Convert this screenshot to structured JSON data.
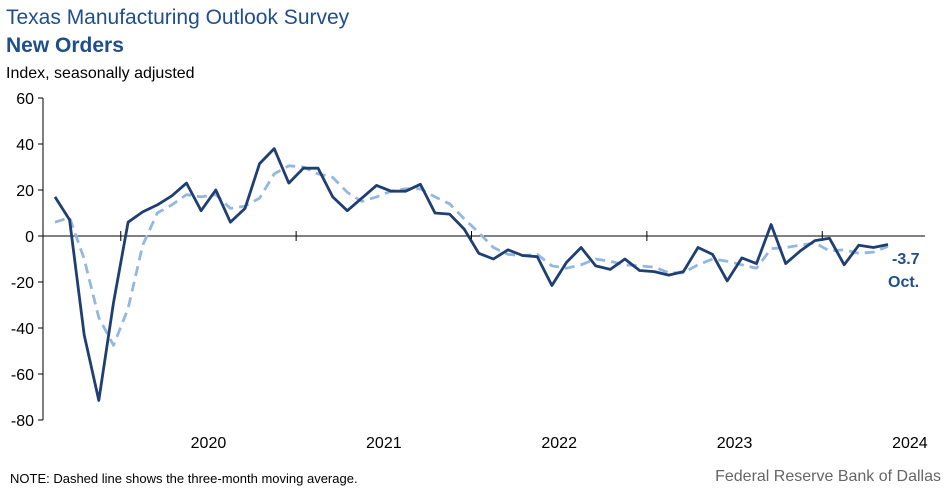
{
  "header": {
    "title": "Texas Manufacturing Outlook Survey",
    "subtitle": "New Orders",
    "units": "Index, seasonally adjusted"
  },
  "footer": {
    "note": "NOTE: Dashed line shows the three-month  moving average.",
    "source": "Federal Reserve Bank of Dallas"
  },
  "colors": {
    "series_main": "#1f3f73",
    "series_ma": "#94b7e0",
    "axis": "#000000",
    "label": "#1f4e8c"
  },
  "chart_data": {
    "type": "line",
    "x_start": "2019-08",
    "x_end": "2024-10",
    "ylim": [
      -80,
      60
    ],
    "yticks": [
      60,
      40,
      20,
      0,
      -20,
      -40,
      -60,
      -80
    ],
    "xtick_labels": [
      "2020",
      "2021",
      "2022",
      "2023",
      "2024"
    ],
    "grid": false,
    "series": [
      {
        "values": [
          17,
          7,
          -43,
          -71.5,
          -29,
          6,
          10.5,
          13.5,
          17.5,
          23,
          11,
          20,
          6,
          12,
          31.5,
          38,
          23,
          29.5,
          29.5,
          17,
          11,
          16.5,
          22,
          19.5,
          19.5,
          22.5,
          10,
          9.5,
          3,
          -7.5,
          -10,
          -6,
          -8.5,
          -9,
          -21.5,
          -11.5,
          -5,
          -13,
          -14.5,
          -10,
          -15,
          -15.5,
          -17,
          -15.5,
          -5,
          -8,
          -19.5,
          -9.5,
          -12,
          5,
          -12,
          -6.5,
          -2,
          -1,
          -12.5,
          -4,
          -5,
          -3.7
        ]
      },
      {
        "dashed": true,
        "values": [
          6,
          8,
          -10,
          -35.5,
          -47.5,
          -31.5,
          -4,
          10,
          13.5,
          18,
          17,
          18,
          12,
          13,
          16.5,
          27,
          30.5,
          30,
          27,
          25.5,
          19,
          15,
          17,
          19.5,
          20.5,
          20.5,
          17,
          14,
          7.5,
          1.5,
          -5,
          -8,
          -8.5,
          -8,
          -13,
          -14,
          -12.5,
          -10,
          -11,
          -12.5,
          -13,
          -13.5,
          -16,
          -16,
          -12.5,
          -10,
          -11,
          -12.5,
          -14,
          -5.5,
          -5,
          -4,
          -3,
          -6.5,
          -6,
          -7.5,
          -7,
          -4.5
        ]
      }
    ],
    "last_value_label": "-3.7",
    "last_period_label": "Oct."
  }
}
